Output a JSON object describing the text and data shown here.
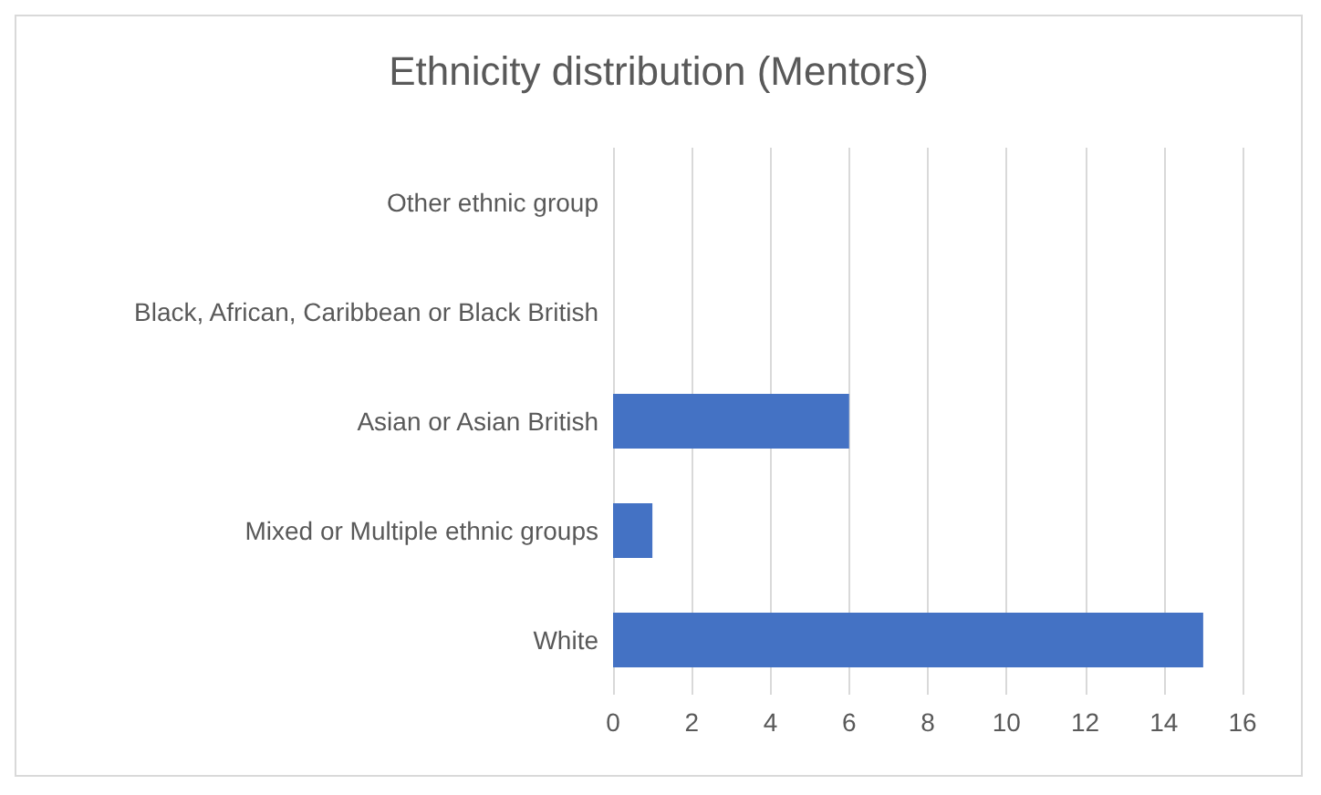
{
  "chart_data": {
    "type": "bar",
    "orientation": "horizontal",
    "title": "Ethnicity distribution (Mentors)",
    "categories": [
      "Other ethnic group",
      "Black, African, Caribbean or Black British",
      "Asian or Asian British",
      "Mixed or Multiple ethnic groups",
      "White"
    ],
    "values": [
      0,
      0,
      6,
      1,
      15
    ],
    "color": "#4472c4",
    "xlim": [
      0,
      16
    ],
    "xticks": [
      0,
      2,
      4,
      6,
      8,
      10,
      12,
      14,
      16
    ],
    "grid": "x"
  }
}
